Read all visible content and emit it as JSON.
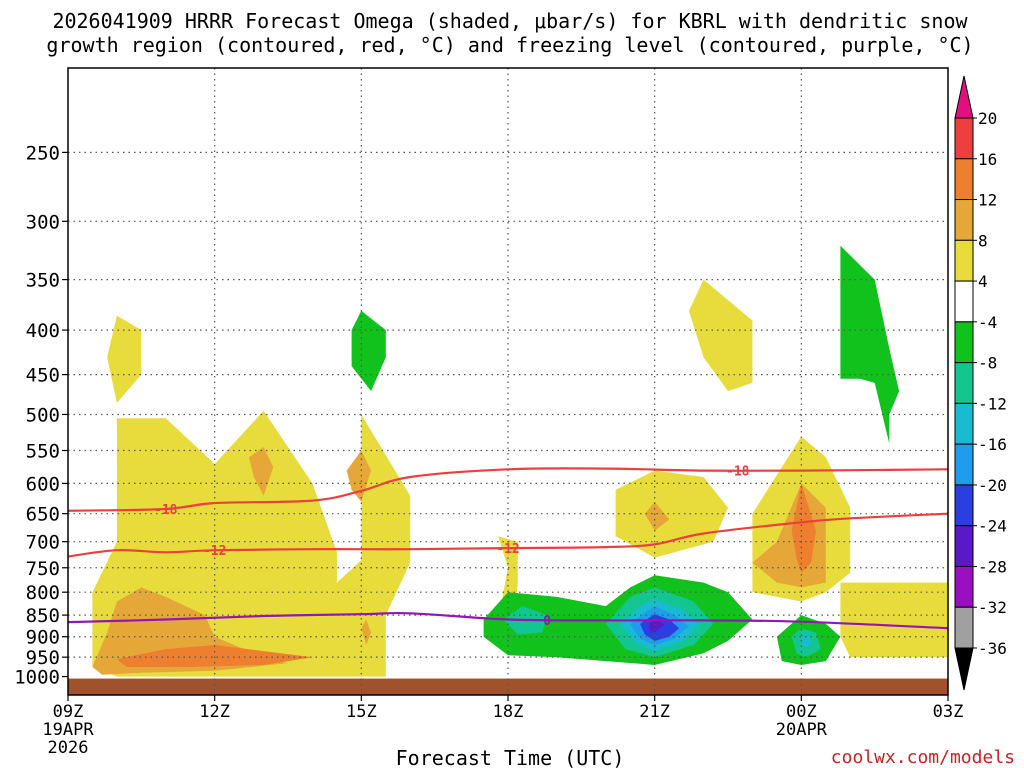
{
  "chart_data": {
    "type": "heatmap",
    "title": "2026041909 HRRR Forecast Omega (shaded, μbar/s) for KBRL with dendritic snow",
    "subtitle": "growth region (contoured, red, °C) and freezing level (contoured, purple, °C)",
    "xlabel": "Forecast Time (UTC)",
    "ylabel": "",
    "credit": "coolwx.com/models",
    "x_tick_labels": [
      "09Z",
      "12Z",
      "15Z",
      "18Z",
      "21Z",
      "00Z",
      "03Z"
    ],
    "x_tick_hours": [
      0,
      3,
      6,
      9,
      12,
      15,
      18
    ],
    "x_start_date": "19APR",
    "x_start_year": "2026",
    "x_mid_date": "20APR",
    "y_tick_labels": [
      "250",
      "300",
      "350",
      "400",
      "450",
      "500",
      "550",
      "600",
      "650",
      "700",
      "750",
      "800",
      "850",
      "900",
      "950",
      "1000"
    ],
    "y_tick_values": [
      250,
      300,
      350,
      400,
      450,
      500,
      550,
      600,
      650,
      700,
      750,
      800,
      850,
      900,
      950,
      1000
    ],
    "ylim": [
      200,
      1050
    ],
    "xlim": [
      0,
      18
    ],
    "colorbar": {
      "labels": [
        "20",
        "16",
        "12",
        "8",
        "4",
        "-4",
        "-8",
        "-12",
        "-16",
        "-20",
        "-24",
        "-28",
        "-32",
        "-36"
      ],
      "bounds": [
        20,
        16,
        12,
        8,
        4,
        -4,
        -8,
        -12,
        -16,
        -20,
        -24,
        -28,
        -32,
        -36
      ],
      "colors": [
        "#e0117f",
        "#ee3f3f",
        "#ee7f2f",
        "#e5a838",
        "#e8dc3c",
        "#ffffff",
        "#10c21b",
        "#13c58e",
        "#18bbcf",
        "#209cec",
        "#2b3ee0",
        "#5a18c8",
        "#9a0fc0",
        "#a0a0a0",
        "#000000"
      ]
    },
    "contours": [
      {
        "name": "-18",
        "color": "#ee3f3f",
        "label": "-18",
        "x": [
          0,
          2,
          3,
          5,
          6,
          7,
          9,
          11,
          13,
          15,
          18
        ],
        "p": [
          645,
          642,
          632,
          628,
          612,
          590,
          578,
          577,
          580,
          580,
          578
        ]
      },
      {
        "name": "-12",
        "color": "#ee3f3f",
        "label": "-12",
        "x": [
          0,
          1,
          2,
          3,
          5,
          7,
          9,
          11,
          12,
          13,
          15,
          16,
          18
        ],
        "p": [
          728,
          716,
          720,
          716,
          714,
          714,
          712,
          710,
          705,
          685,
          665,
          658,
          650
        ]
      },
      {
        "name": "0",
        "color": "#9515b8",
        "label": "0",
        "x": [
          0,
          2,
          4,
          6,
          7,
          9,
          11,
          13,
          15,
          18
        ],
        "p": [
          866,
          860,
          852,
          848,
          846,
          860,
          862,
          862,
          865,
          880
        ]
      }
    ],
    "surface_color": "#a0522d",
    "omega_regions": [
      {
        "class": "4 to 8",
        "color": "#e8dc3c",
        "pts": [
          [
            1,
            385
          ],
          [
            1.5,
            400
          ],
          [
            1.5,
            450
          ],
          [
            1,
            485
          ],
          [
            0.8,
            430
          ]
        ]
      },
      {
        "class": "4 to 8",
        "color": "#e8dc3c",
        "pts": [
          [
            1,
            505
          ],
          [
            2,
            505
          ],
          [
            3,
            570
          ],
          [
            4,
            495
          ],
          [
            5,
            600
          ],
          [
            5.5,
            720
          ],
          [
            5.5,
            780
          ],
          [
            6,
            735
          ],
          [
            6,
            500
          ],
          [
            7,
            620
          ],
          [
            7,
            740
          ],
          [
            6.5,
            850
          ],
          [
            6.5,
            1000
          ],
          [
            1,
            1000
          ],
          [
            0.5,
            975
          ],
          [
            0.5,
            800
          ],
          [
            1,
            700
          ]
        ]
      },
      {
        "class": "8 to 12",
        "color": "#e5a838",
        "pts": [
          [
            0.5,
            975
          ],
          [
            0.8,
            890
          ],
          [
            1,
            820
          ],
          [
            1.5,
            790
          ],
          [
            2,
            810
          ],
          [
            2.8,
            850
          ],
          [
            3,
            900
          ],
          [
            4,
            950
          ],
          [
            4.5,
            965
          ],
          [
            3,
            985
          ],
          [
            1.5,
            990
          ],
          [
            0.7,
            995
          ]
        ]
      },
      {
        "class": "12 to 16",
        "color": "#ee7f2f",
        "pts": [
          [
            1,
            955
          ],
          [
            2,
            930
          ],
          [
            3,
            920
          ],
          [
            4,
            935
          ],
          [
            5,
            950
          ],
          [
            4,
            970
          ],
          [
            2.5,
            975
          ],
          [
            1.2,
            975
          ]
        ]
      },
      {
        "class": "8 to 12",
        "color": "#e5a838",
        "pts": [
          [
            3.7,
            560
          ],
          [
            4,
            545
          ],
          [
            4.2,
            575
          ],
          [
            4,
            620
          ],
          [
            3.8,
            590
          ]
        ]
      },
      {
        "class": "8 to 12",
        "color": "#e5a838",
        "pts": [
          [
            5.7,
            580
          ],
          [
            6,
            550
          ],
          [
            6.2,
            580
          ],
          [
            6,
            630
          ],
          [
            5.8,
            610
          ]
        ]
      },
      {
        "class": "8 to 12",
        "color": "#e5a838",
        "pts": [
          [
            6,
            880
          ],
          [
            6.1,
            860
          ],
          [
            6.2,
            890
          ],
          [
            6.1,
            920
          ]
        ]
      },
      {
        "class": "4 to 8",
        "color": "#e8dc3c",
        "pts": [
          [
            8.8,
            690
          ],
          [
            9.2,
            700
          ],
          [
            9.2,
            780
          ],
          [
            9.1,
            890
          ],
          [
            8.8,
            860
          ],
          [
            9,
            750
          ]
        ]
      },
      {
        "class": "4 to 8",
        "color": "#e8dc3c",
        "pts": [
          [
            11.2,
            610
          ],
          [
            12,
            580
          ],
          [
            13,
            590
          ],
          [
            13.5,
            640
          ],
          [
            13.2,
            700
          ],
          [
            12,
            730
          ],
          [
            11.2,
            690
          ]
        ]
      },
      {
        "class": "8 to 12",
        "color": "#e5a838",
        "pts": [
          [
            11.8,
            650
          ],
          [
            12,
            630
          ],
          [
            12.3,
            660
          ],
          [
            12,
            680
          ]
        ]
      },
      {
        "class": "4 to 8",
        "color": "#e8dc3c",
        "pts": [
          [
            13,
            350
          ],
          [
            14,
            390
          ],
          [
            14,
            460
          ],
          [
            13.5,
            470
          ],
          [
            13,
            430
          ],
          [
            12.7,
            380
          ]
        ]
      },
      {
        "class": "4 to 8",
        "color": "#e8dc3c",
        "pts": [
          [
            14,
            650
          ],
          [
            15,
            530
          ],
          [
            15.5,
            560
          ],
          [
            16,
            640
          ],
          [
            16,
            760
          ],
          [
            15.5,
            800
          ],
          [
            15,
            820
          ],
          [
            14,
            800
          ],
          [
            14,
            740
          ]
        ]
      },
      {
        "class": "8 to 12",
        "color": "#e5a838",
        "pts": [
          [
            14,
            740
          ],
          [
            14.5,
            700
          ],
          [
            15,
            600
          ],
          [
            15.5,
            640
          ],
          [
            15.5,
            780
          ],
          [
            15,
            790
          ],
          [
            14.5,
            780
          ]
        ]
      },
      {
        "class": "12 to 16",
        "color": "#ee7f2f",
        "pts": [
          [
            14.8,
            680
          ],
          [
            15,
            600
          ],
          [
            15.3,
            680
          ],
          [
            15.2,
            740
          ],
          [
            15,
            760
          ],
          [
            14.9,
            730
          ]
        ]
      },
      {
        "class": "4 to 8",
        "color": "#e8dc3c",
        "pts": [
          [
            15.8,
            780
          ],
          [
            18,
            780
          ],
          [
            18,
            950
          ],
          [
            16,
            950
          ],
          [
            15.8,
            900
          ]
        ]
      },
      {
        "class": "4 to 8",
        "color": "#e8dc3c",
        "pts": [
          [
            14.9,
            930
          ],
          [
            15,
            920
          ],
          [
            15,
            955
          ],
          [
            14.9,
            955
          ]
        ]
      },
      {
        "class": "-8 to -4",
        "color": "#10c21b",
        "pts": [
          [
            6,
            380
          ],
          [
            6.5,
            400
          ],
          [
            6.5,
            430
          ],
          [
            6.2,
            470
          ],
          [
            5.8,
            440
          ],
          [
            5.8,
            400
          ]
        ]
      },
      {
        "class": "-8 to -4",
        "color": "#10c21b",
        "pts": [
          [
            15.8,
            320
          ],
          [
            16.5,
            350
          ],
          [
            16.8,
            420
          ],
          [
            17,
            470
          ],
          [
            16.8,
            500
          ],
          [
            16.8,
            540
          ],
          [
            16.5,
            460
          ],
          [
            16.2,
            455
          ],
          [
            15.8,
            455
          ]
        ]
      },
      {
        "class": "-8 to -4",
        "color": "#10c21b",
        "pts": [
          [
            8.5,
            860
          ],
          [
            9,
            800
          ],
          [
            10,
            810
          ],
          [
            11,
            830
          ],
          [
            11.5,
            790
          ],
          [
            12,
            765
          ],
          [
            13,
            780
          ],
          [
            13.5,
            800
          ],
          [
            14,
            860
          ],
          [
            13.5,
            910
          ],
          [
            13,
            940
          ],
          [
            12,
            970
          ],
          [
            11,
            960
          ],
          [
            10,
            950
          ],
          [
            9,
            945
          ],
          [
            8.5,
            900
          ]
        ]
      },
      {
        "class": "-8 to -4",
        "color": "#10c21b",
        "pts": [
          [
            14.5,
            900
          ],
          [
            15,
            850
          ],
          [
            15.5,
            870
          ],
          [
            15.8,
            900
          ],
          [
            15.5,
            960
          ],
          [
            15,
            970
          ],
          [
            14.6,
            960
          ]
        ]
      },
      {
        "class": "-12 to -8",
        "color": "#13c58e",
        "pts": [
          [
            8.9,
            860
          ],
          [
            9.3,
            830
          ],
          [
            9.8,
            850
          ],
          [
            9.7,
            890
          ],
          [
            9.2,
            895
          ]
        ]
      },
      {
        "class": "-12 to -8",
        "color": "#13c58e",
        "pts": [
          [
            11,
            870
          ],
          [
            11.5,
            810
          ],
          [
            12,
            790
          ],
          [
            12.8,
            820
          ],
          [
            13.2,
            870
          ],
          [
            12.8,
            920
          ],
          [
            12,
            950
          ],
          [
            11.4,
            930
          ]
        ]
      },
      {
        "class": "-16 to -12",
        "color": "#18bbcf",
        "pts": [
          [
            11.3,
            870
          ],
          [
            11.7,
            830
          ],
          [
            12,
            815
          ],
          [
            12.6,
            840
          ],
          [
            12.9,
            875
          ],
          [
            12.6,
            910
          ],
          [
            12,
            935
          ],
          [
            11.6,
            915
          ]
        ]
      },
      {
        "class": "-20 to -16",
        "color": "#209cec",
        "pts": [
          [
            11.5,
            870
          ],
          [
            11.8,
            845
          ],
          [
            12,
            830
          ],
          [
            12.4,
            850
          ],
          [
            12.7,
            875
          ],
          [
            12.4,
            905
          ],
          [
            12,
            920
          ],
          [
            11.7,
            905
          ]
        ]
      },
      {
        "class": "-24 to -20",
        "color": "#2b3ee0",
        "pts": [
          [
            11.7,
            870
          ],
          [
            12,
            848
          ],
          [
            12.3,
            860
          ],
          [
            12.5,
            880
          ],
          [
            12.3,
            900
          ],
          [
            12,
            910
          ],
          [
            11.8,
            895
          ]
        ]
      },
      {
        "class": "-28 to -24",
        "color": "#5a18c8",
        "pts": [
          [
            11.9,
            870
          ],
          [
            12,
            858
          ],
          [
            12.2,
            872
          ],
          [
            12,
            890
          ],
          [
            11.9,
            885
          ]
        ]
      },
      {
        "class": "-12 to -8",
        "color": "#13c58e",
        "pts": [
          [
            14.8,
            900
          ],
          [
            15,
            880
          ],
          [
            15.3,
            890
          ],
          [
            15.4,
            930
          ],
          [
            15.1,
            950
          ],
          [
            14.9,
            940
          ]
        ]
      },
      {
        "class": "-16 to -12",
        "color": "#18bbcf",
        "pts": [
          [
            15,
            900
          ],
          [
            15.1,
            890
          ],
          [
            15.2,
            910
          ],
          [
            15.1,
            930
          ],
          [
            15,
            920
          ]
        ]
      }
    ]
  }
}
